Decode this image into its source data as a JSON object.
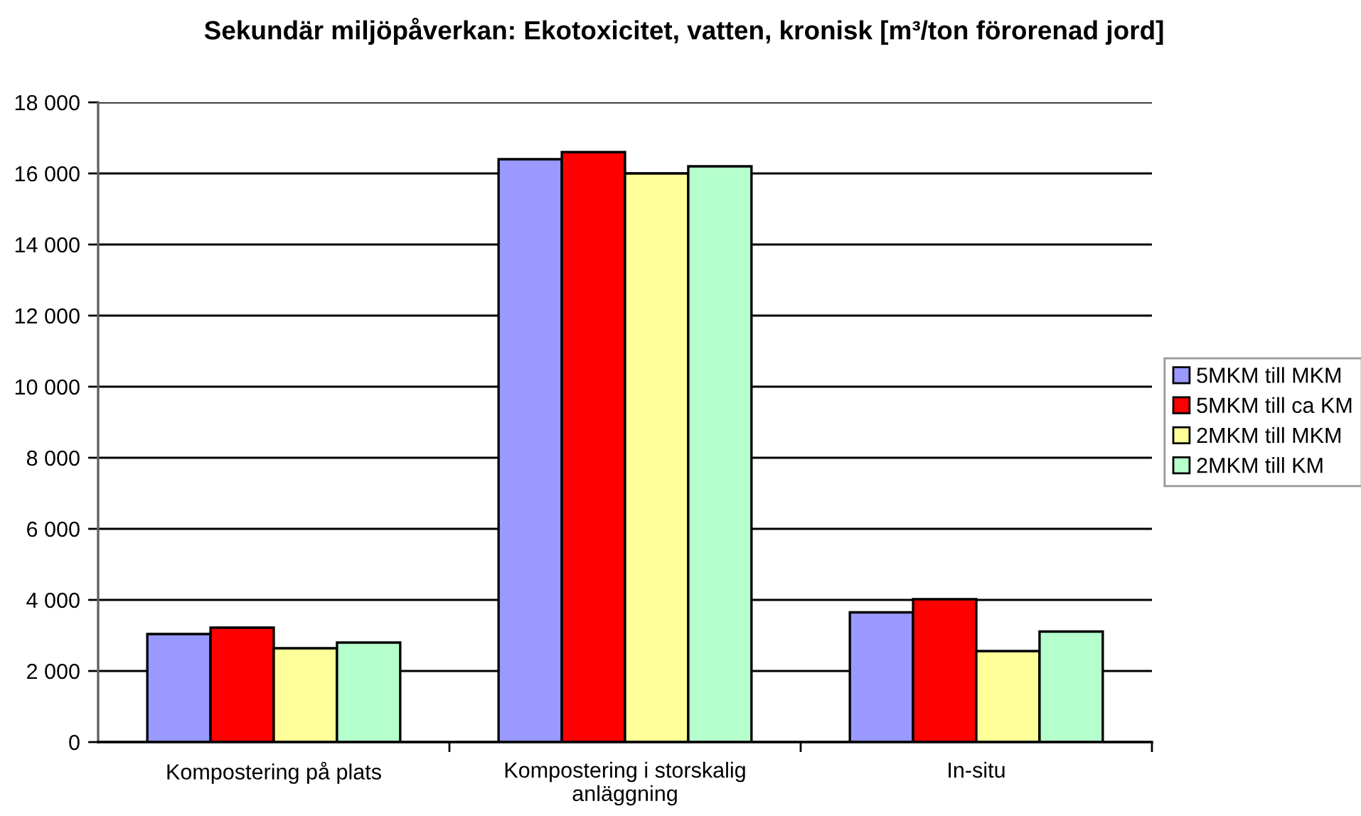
{
  "chart_data": {
    "type": "bar",
    "title": "Sekundär miljöpåverkan: Ekotoxicitet, vatten, kronisk [m³/ton förorenad jord]",
    "categories": [
      "Kompostering på plats",
      "Kompostering i storskalig\nanläggning",
      "In-situ"
    ],
    "series": [
      {
        "name": "5MKM till MKM",
        "color": "#9999ff",
        "values": [
          3040,
          16400,
          3650
        ]
      },
      {
        "name": "5MKM till ca KM",
        "color": "#ff0000",
        "values": [
          3220,
          16600,
          4020
        ]
      },
      {
        "name": "2MKM till MKM",
        "color": "#ffff99",
        "values": [
          2640,
          16000,
          2560
        ]
      },
      {
        "name": "2MKM till KM",
        "color": "#b4ffcc",
        "values": [
          2800,
          16200,
          3110
        ]
      }
    ],
    "ylim": [
      0,
      18000
    ],
    "yticks": [
      {
        "value": 0,
        "label": "0"
      },
      {
        "value": 2000,
        "label": "2 000"
      },
      {
        "value": 4000,
        "label": "4 000"
      },
      {
        "value": 6000,
        "label": "6 000"
      },
      {
        "value": 8000,
        "label": "8 000"
      },
      {
        "value": 10000,
        "label": "10 000"
      },
      {
        "value": 12000,
        "label": "12 000"
      },
      {
        "value": 14000,
        "label": "14 000"
      },
      {
        "value": 16000,
        "label": "16 000"
      },
      {
        "value": 18000,
        "label": "18 000"
      }
    ],
    "grid": "y",
    "legend": "right"
  }
}
